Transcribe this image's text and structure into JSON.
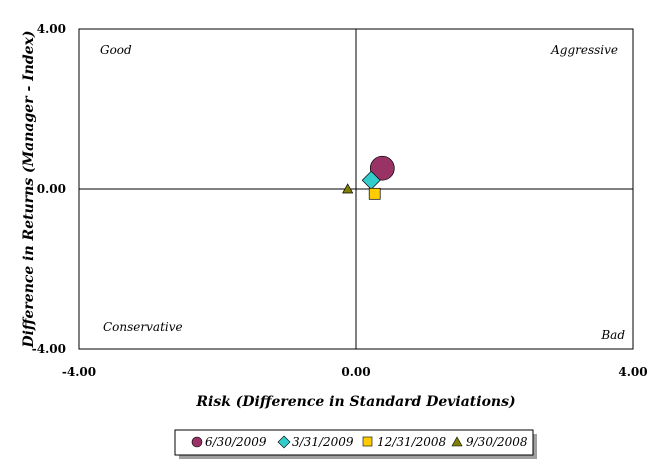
{
  "chart_data": {
    "type": "scatter",
    "xlabel": "Risk (Difference in Standard Deviations)",
    "ylabel": "Difference in Returns (Manager - Index)",
    "xlim": [
      -4,
      4
    ],
    "ylim": [
      -4,
      4
    ],
    "x_ticks": [
      "-4.00",
      "0.00",
      "4.00"
    ],
    "y_ticks": [
      "4.00",
      "0.00",
      "-4.00"
    ],
    "grid": false,
    "legend_position": "bottom",
    "quadrant_labels": {
      "top_left": "Good",
      "top_right": "Aggressive",
      "bottom_left": "Conservative",
      "bottom_right": "Bad"
    },
    "series": [
      {
        "name": "6/30/2009",
        "marker": "circle",
        "color": "#993366",
        "x": 0.38,
        "y": 0.52
      },
      {
        "name": "3/31/2009",
        "marker": "diamond",
        "color": "#33CCCC",
        "x": 0.22,
        "y": 0.22
      },
      {
        "name": "12/31/2008",
        "marker": "square",
        "color": "#FFCC00",
        "x": 0.27,
        "y": -0.12
      },
      {
        "name": "9/30/2008",
        "marker": "triangle",
        "color": "#808000",
        "x": -0.12,
        "y": 0.0
      }
    ]
  }
}
